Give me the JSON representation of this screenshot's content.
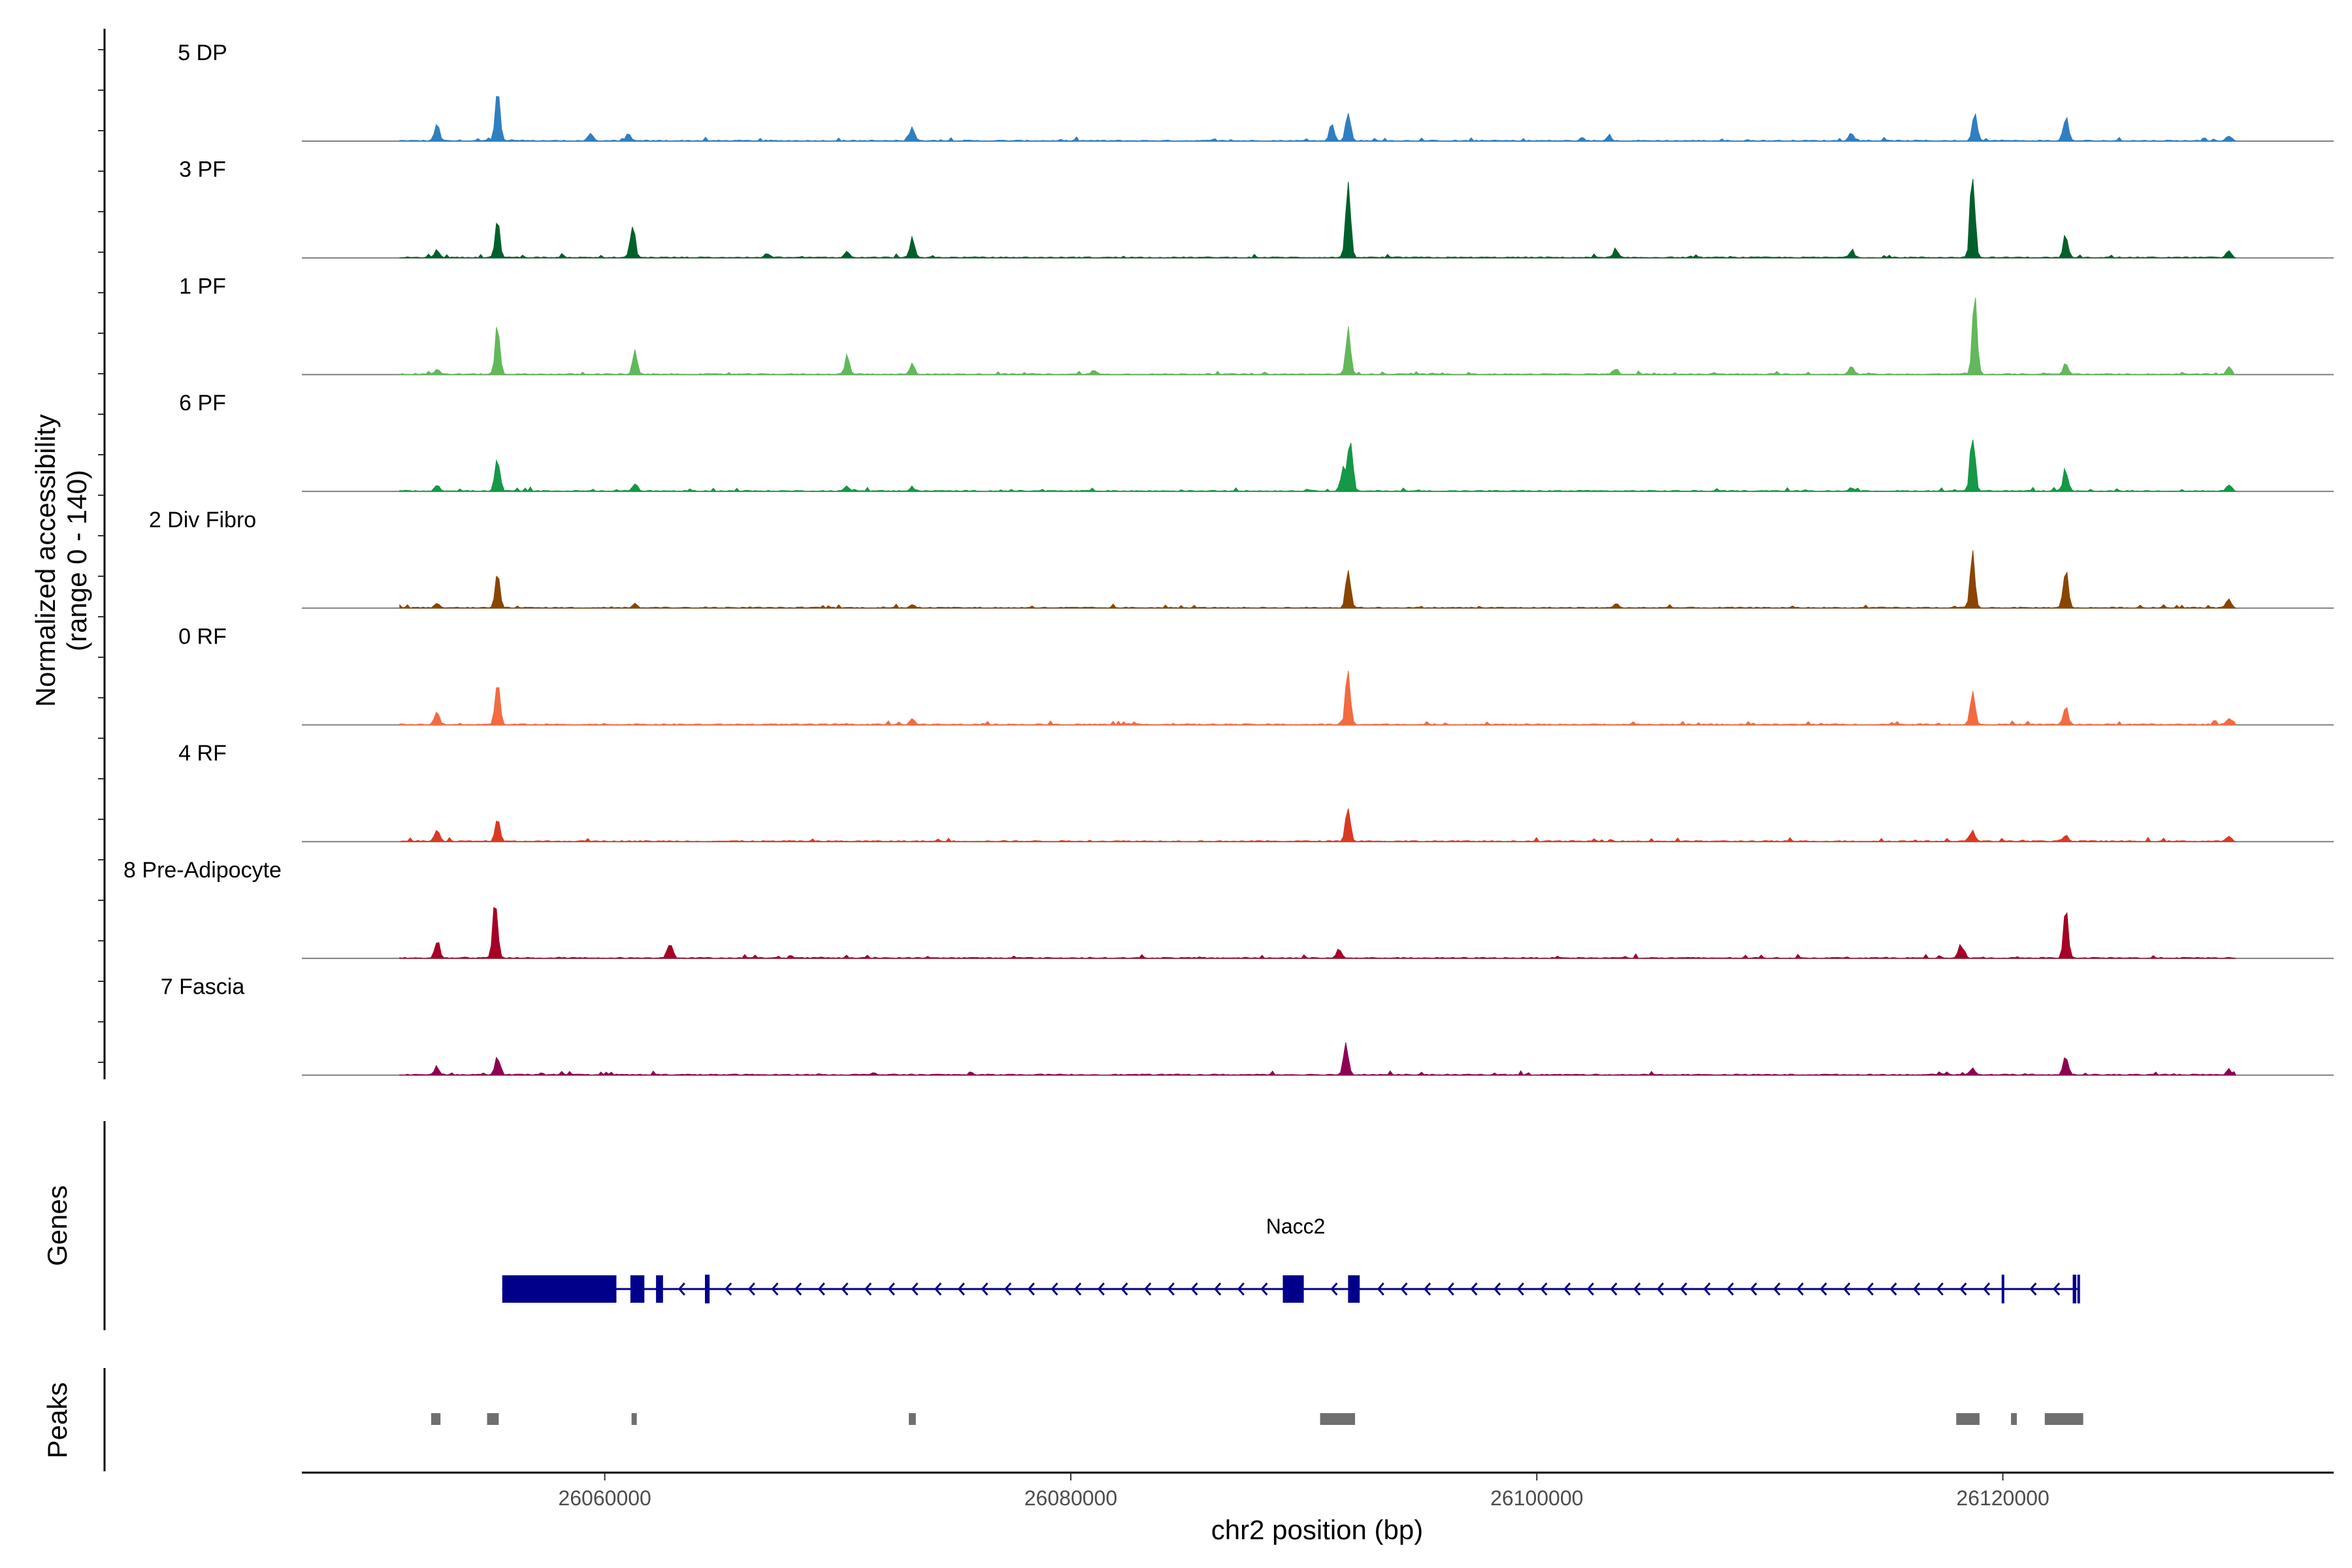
{
  "chart_data": {
    "type": "area",
    "title": "",
    "ylabel_line1": "Normalized accessibility",
    "ylabel_line2": "(range 0 - 140)",
    "genes_label": "Genes",
    "peaks_label": "Peaks",
    "xlabel": "chr2 position (bp)",
    "xlim": [
      26047000,
      26134200
    ],
    "ylim": [
      0,
      140
    ],
    "x_ticks": [
      {
        "value": 26060000,
        "label": "26060000"
      },
      {
        "value": 26080000,
        "label": "26080000"
      },
      {
        "value": 26100000,
        "label": "26100000"
      },
      {
        "value": 26120000,
        "label": "26120000"
      }
    ],
    "data_range": [
      26051200,
      26130000
    ],
    "series": [
      {
        "name": "5 DP",
        "color": "#2f7fc1",
        "peaks": [
          [
            26052800,
            28
          ],
          [
            26055400,
            78
          ],
          [
            26059400,
            12
          ],
          [
            26061000,
            10
          ],
          [
            26073200,
            22
          ],
          [
            26091200,
            30
          ],
          [
            26091900,
            48
          ],
          [
            26103100,
            8
          ],
          [
            26113500,
            15
          ],
          [
            26118800,
            45
          ],
          [
            26122700,
            40
          ],
          [
            26129700,
            8
          ]
        ]
      },
      {
        "name": "3 PF",
        "color": "#00602b",
        "peaks": [
          [
            26052800,
            12
          ],
          [
            26055400,
            52
          ],
          [
            26061200,
            48
          ],
          [
            26067000,
            6
          ],
          [
            26070400,
            12
          ],
          [
            26073200,
            32
          ],
          [
            26091900,
            125
          ],
          [
            26103400,
            12
          ],
          [
            26113500,
            10
          ],
          [
            26118700,
            130
          ],
          [
            26122700,
            35
          ],
          [
            26129700,
            12
          ]
        ]
      },
      {
        "name": "1 PF",
        "color": "#62b85a",
        "peaks": [
          [
            26052800,
            8
          ],
          [
            26055400,
            80
          ],
          [
            26061300,
            35
          ],
          [
            26070400,
            25
          ],
          [
            26073200,
            15
          ],
          [
            26081000,
            6
          ],
          [
            26091900,
            70
          ],
          [
            26103400,
            8
          ],
          [
            26113500,
            15
          ],
          [
            26118800,
            120
          ],
          [
            26122700,
            15
          ],
          [
            26129700,
            10
          ]
        ]
      },
      {
        "name": "6 PF",
        "color": "#159847",
        "peaks": [
          [
            26052800,
            10
          ],
          [
            26055400,
            55
          ],
          [
            26061300,
            12
          ],
          [
            26070400,
            8
          ],
          [
            26073200,
            6
          ],
          [
            26091700,
            40
          ],
          [
            26092000,
            75
          ],
          [
            26113500,
            6
          ],
          [
            26118700,
            95
          ],
          [
            26122700,
            35
          ],
          [
            26129700,
            10
          ]
        ]
      },
      {
        "name": "2 Div Fibro",
        "color": "#8a4500",
        "peaks": [
          [
            26052800,
            6
          ],
          [
            26055400,
            52
          ],
          [
            26061300,
            8
          ],
          [
            26073200,
            6
          ],
          [
            26091900,
            60
          ],
          [
            26103400,
            6
          ],
          [
            26118700,
            85
          ],
          [
            26122700,
            60
          ],
          [
            26129700,
            15
          ]
        ]
      },
      {
        "name": "0 RF",
        "color": "#f26b41",
        "peaks": [
          [
            26052800,
            20
          ],
          [
            26055400,
            62
          ],
          [
            26073200,
            10
          ],
          [
            26091900,
            90
          ],
          [
            26118700,
            55
          ],
          [
            26122700,
            28
          ],
          [
            26129700,
            12
          ]
        ]
      },
      {
        "name": "4 RF",
        "color": "#d93a22",
        "peaks": [
          [
            26052800,
            22
          ],
          [
            26055400,
            32
          ],
          [
            26091900,
            55
          ],
          [
            26118700,
            15
          ],
          [
            26122700,
            10
          ],
          [
            26129700,
            8
          ]
        ]
      },
      {
        "name": "8 Pre-Adipocyte",
        "color": "#a50026",
        "peaks": [
          [
            26052800,
            30
          ],
          [
            26055300,
            95
          ],
          [
            26062800,
            22
          ],
          [
            26091500,
            15
          ],
          [
            26118200,
            20
          ],
          [
            26122700,
            75
          ]
        ]
      },
      {
        "name": "7 Fascia",
        "color": "#8e0152",
        "peaks": [
          [
            26052800,
            12
          ],
          [
            26055400,
            28
          ],
          [
            26091800,
            50
          ],
          [
            26118700,
            12
          ],
          [
            26122700,
            30
          ],
          [
            26129700,
            8
          ]
        ]
      }
    ],
    "gene": {
      "name": "Nacc2",
      "color": "#00008b",
      "start": 26055600,
      "end": 26123300,
      "strand": "-",
      "exons": [
        [
          26055600,
          26060500
        ],
        [
          26061100,
          26061700
        ],
        [
          26062200,
          26062500
        ],
        [
          26064300,
          26064500
        ],
        [
          26089100,
          26090000
        ],
        [
          26091900,
          26092400
        ],
        [
          26119950,
          26120050
        ],
        [
          26123000,
          26123150
        ],
        [
          26123200,
          26123300
        ]
      ]
    },
    "peaks": [
      [
        26052550,
        26052950
      ],
      [
        26054950,
        26055450
      ],
      [
        26061150,
        26061350
      ],
      [
        26073050,
        26073350
      ],
      [
        26090700,
        26092200
      ],
      [
        26118000,
        26119000
      ],
      [
        26120350,
        26120600
      ],
      [
        26121800,
        26123450
      ]
    ]
  }
}
